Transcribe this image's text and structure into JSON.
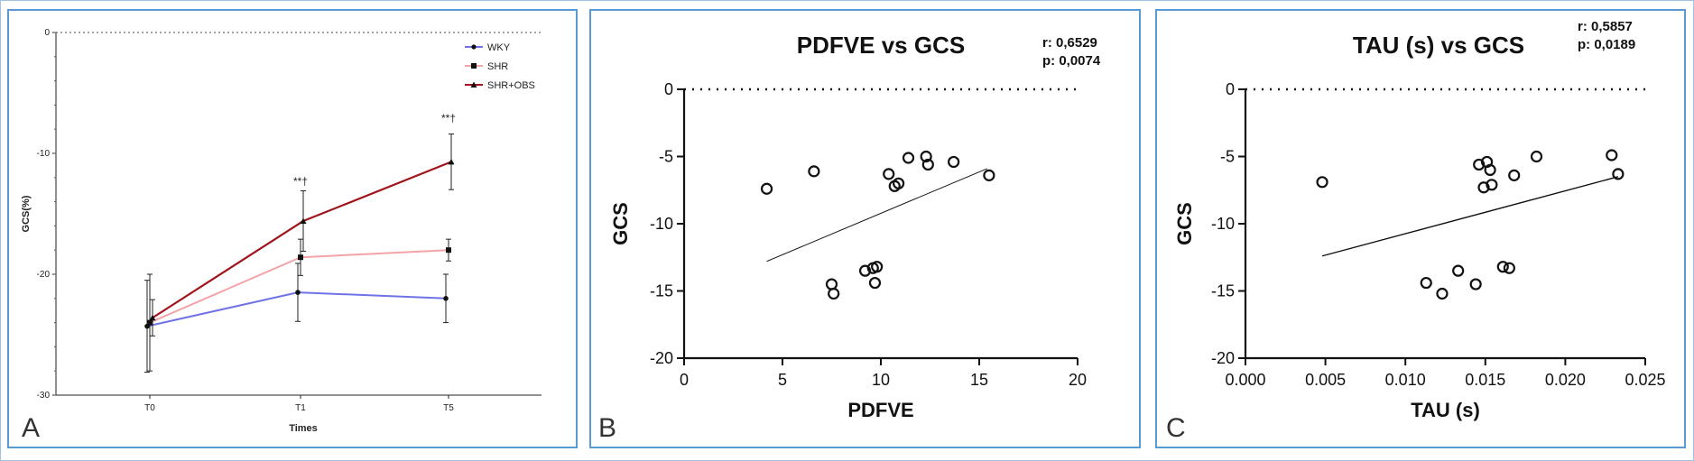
{
  "panels": {
    "a": {
      "letter": "A"
    },
    "b": {
      "letter": "B"
    },
    "c": {
      "letter": "C"
    }
  },
  "chart_data": [
    {
      "type": "line",
      "title": "",
      "xlabel": "Times",
      "ylabel": "GCS(%)",
      "categories": [
        "T0",
        "T1",
        "T5"
      ],
      "ylim": [
        -30,
        0
      ],
      "yticks": [
        "0",
        "-10",
        "-20",
        "-30"
      ],
      "reference_line": 0,
      "legend_position": "top-right",
      "series": [
        {
          "name": "WKY",
          "color": "#6f73e6",
          "marker": "circle",
          "values": [
            -24.3,
            -21.5,
            -22.0
          ],
          "errors": [
            3.8,
            2.4,
            2.0
          ]
        },
        {
          "name": "SHR",
          "color": "#f4a3a6",
          "marker": "square",
          "values": [
            -24.0,
            -18.6,
            -18.0
          ],
          "errors": [
            4.0,
            1.5,
            0.9
          ]
        },
        {
          "name": "SHR+OBS",
          "color": "#a0141b",
          "marker": "triangle",
          "values": [
            -23.6,
            -15.6,
            -10.7
          ],
          "errors": [
            1.5,
            2.5,
            2.3
          ]
        }
      ],
      "annotations": [
        {
          "category": "T1",
          "text": "**†",
          "y": -12.6
        },
        {
          "category": "T5",
          "text": "**†",
          "y": -7.4
        }
      ]
    },
    {
      "type": "scatter",
      "title": "PDFVE vs GCS",
      "xlabel": "PDFVE",
      "ylabel": "GCS",
      "xlim": [
        0,
        20
      ],
      "ylim": [
        -20,
        0
      ],
      "xticks": [
        "0",
        "5",
        "10",
        "15",
        "20"
      ],
      "yticks": [
        "0",
        "-5",
        "-10",
        "-15",
        "-20"
      ],
      "reference_line": 0,
      "stats": [
        "r: 0,6529",
        "p: 0,0074"
      ],
      "points": [
        [
          4.2,
          -7.4
        ],
        [
          6.6,
          -6.1
        ],
        [
          10.4,
          -6.3
        ],
        [
          10.7,
          -7.2
        ],
        [
          10.9,
          -7.0
        ],
        [
          11.4,
          -5.1
        ],
        [
          12.3,
          -5.0
        ],
        [
          12.4,
          -5.6
        ],
        [
          13.7,
          -5.4
        ],
        [
          15.5,
          -6.4
        ],
        [
          7.5,
          -14.5
        ],
        [
          7.6,
          -15.2
        ],
        [
          9.2,
          -13.5
        ],
        [
          9.6,
          -13.3
        ],
        [
          9.8,
          -13.2
        ],
        [
          9.7,
          -14.4
        ]
      ],
      "regression": {
        "x": [
          4.2,
          15.4
        ],
        "y": [
          -12.8,
          -5.9
        ]
      }
    },
    {
      "type": "scatter",
      "title": "TAU (s) vs GCS",
      "xlabel": "TAU (s)",
      "ylabel": "GCS",
      "xlim": [
        0,
        0.025
      ],
      "ylim": [
        -20,
        0
      ],
      "xticks": [
        "0.000",
        "0.005",
        "0.010",
        "0.015",
        "0.020",
        "0.025"
      ],
      "yticks": [
        "0",
        "-5",
        "-10",
        "-15",
        "-20"
      ],
      "reference_line": 0,
      "stats": [
        "r: 0,5857",
        "p: 0,0189"
      ],
      "points": [
        [
          0.0048,
          -6.9
        ],
        [
          0.0146,
          -5.6
        ],
        [
          0.0151,
          -5.4
        ],
        [
          0.0153,
          -6.0
        ],
        [
          0.0149,
          -7.3
        ],
        [
          0.0154,
          -7.1
        ],
        [
          0.0168,
          -6.4
        ],
        [
          0.0182,
          -5.0
        ],
        [
          0.0229,
          -4.9
        ],
        [
          0.0233,
          -6.3
        ],
        [
          0.0113,
          -14.4
        ],
        [
          0.0123,
          -15.2
        ],
        [
          0.0133,
          -13.5
        ],
        [
          0.0144,
          -14.5
        ],
        [
          0.0161,
          -13.2
        ],
        [
          0.0165,
          -13.3
        ]
      ],
      "regression": {
        "x": [
          0.0048,
          0.0233
        ],
        "y": [
          -12.4,
          -6.5
        ]
      }
    }
  ]
}
